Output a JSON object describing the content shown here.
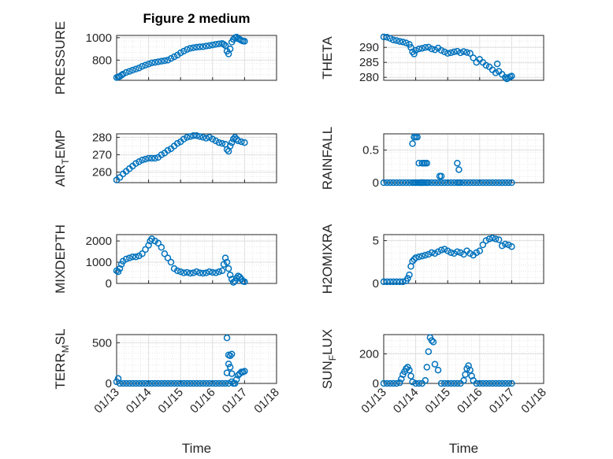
{
  "figure": {
    "title": "Figure 2 medium",
    "xlabel": "Time"
  },
  "colors": {
    "marker": "#0072BD",
    "axis": "#262626",
    "grid": "#dfdfdf"
  },
  "chart_data": [
    {
      "type": "scatter",
      "id": "pressure",
      "ylabel": "PRESSURE",
      "sub": null,
      "ylim": [
        620,
        1020
      ],
      "yticks": [
        800,
        1000
      ],
      "xticks": [
        "01/13",
        "01/14",
        "01/15",
        "01/16",
        "01/17",
        "01/18"
      ],
      "grid": true,
      "series": [
        {
          "x": [
            13.0,
            13.05,
            13.1,
            13.15,
            13.2,
            13.3,
            13.4,
            13.5,
            13.6,
            13.7,
            13.8,
            13.9,
            14.0,
            14.1,
            14.2,
            14.3,
            14.4,
            14.5,
            14.6,
            14.7,
            14.8,
            14.9,
            15.0,
            15.1,
            15.2,
            15.3,
            15.4,
            15.5,
            15.6,
            15.7,
            15.8,
            15.9,
            16.0,
            16.1,
            16.2,
            16.3,
            16.35,
            16.4,
            16.45,
            16.5,
            16.55,
            16.6,
            16.65,
            16.7,
            16.75,
            16.8,
            16.85,
            16.9,
            16.95,
            17.0
          ],
          "y": [
            645,
            650,
            655,
            665,
            675,
            690,
            700,
            710,
            720,
            730,
            745,
            755,
            765,
            775,
            780,
            785,
            790,
            795,
            800,
            815,
            830,
            845,
            865,
            880,
            895,
            905,
            910,
            915,
            918,
            920,
            925,
            930,
            935,
            940,
            945,
            948,
            940,
            930,
            880,
            855,
            900,
            960,
            985,
            1000,
            1005,
            990,
            985,
            975,
            970,
            968
          ]
        }
      ]
    },
    {
      "type": "scatter",
      "id": "theta",
      "ylabel": "THETA",
      "sub": null,
      "ylim": [
        279,
        294
      ],
      "yticks": [
        280,
        285,
        290
      ],
      "xticks": [
        "01/13",
        "01/14",
        "01/15",
        "01/16",
        "01/17",
        "01/18"
      ],
      "grid": true,
      "series": [
        {
          "x": [
            13.0,
            13.1,
            13.2,
            13.3,
            13.4,
            13.5,
            13.6,
            13.7,
            13.8,
            13.85,
            13.9,
            13.95,
            14.0,
            14.1,
            14.2,
            14.3,
            14.4,
            14.5,
            14.6,
            14.7,
            14.8,
            14.9,
            15.0,
            15.1,
            15.2,
            15.3,
            15.4,
            15.5,
            15.6,
            15.7,
            15.8,
            15.9,
            16.0,
            16.1,
            16.2,
            16.3,
            16.4,
            16.5,
            16.55,
            16.6,
            16.7,
            16.8,
            16.85,
            16.9,
            16.95,
            17.0
          ],
          "y": [
            293.5,
            293.4,
            293,
            292.5,
            292.3,
            292,
            291.8,
            291.5,
            291,
            290,
            288.5,
            287.8,
            289,
            289.5,
            289.7,
            290,
            290.1,
            289.5,
            289.2,
            289.8,
            289,
            288.5,
            288,
            288.2,
            288.5,
            288.7,
            288.2,
            288.6,
            288.3,
            288,
            286.5,
            285,
            286,
            285,
            284,
            283.5,
            282.5,
            281.5,
            284.5,
            282,
            281,
            280,
            279.5,
            279.8,
            280.2,
            280.4
          ]
        }
      ]
    },
    {
      "type": "scatter",
      "id": "air_temp",
      "ylabel": "AIR",
      "sub": "T",
      "ylabel_tail": "EMP",
      "ylim": [
        254,
        282
      ],
      "yticks": [
        260,
        270,
        280
      ],
      "xticks": [
        "01/13",
        "01/14",
        "01/15",
        "01/16",
        "01/17",
        "01/18"
      ],
      "grid": true,
      "series": [
        {
          "x": [
            13.0,
            13.1,
            13.2,
            13.3,
            13.4,
            13.5,
            13.6,
            13.7,
            13.8,
            13.9,
            14.0,
            14.1,
            14.2,
            14.3,
            14.4,
            14.5,
            14.6,
            14.7,
            14.8,
            14.9,
            15.0,
            15.1,
            15.2,
            15.3,
            15.4,
            15.5,
            15.6,
            15.7,
            15.8,
            15.9,
            16.0,
            16.1,
            16.2,
            16.3,
            16.4,
            16.45,
            16.5,
            16.55,
            16.6,
            16.65,
            16.7,
            16.75,
            16.8,
            16.9,
            17.0
          ],
          "y": [
            255.5,
            257,
            259,
            260.5,
            262,
            263.5,
            265,
            266,
            267,
            267.5,
            268,
            268,
            268,
            268.5,
            270,
            271,
            272.5,
            273.5,
            275,
            276.5,
            277.5,
            279,
            280,
            280.5,
            281,
            281,
            280.5,
            280,
            279.5,
            280,
            279,
            278,
            277,
            276.5,
            276,
            273,
            272,
            275,
            277,
            279,
            280,
            279,
            278,
            277.5,
            277
          ]
        }
      ]
    },
    {
      "type": "scatter",
      "id": "rainfall",
      "ylabel": "RAINFALL",
      "sub": null,
      "ylim": [
        0,
        0.75
      ],
      "yticks": [
        0,
        0.5
      ],
      "ytick_labels": [
        "0",
        "0.5"
      ],
      "xticks": [
        "01/13",
        "01/14",
        "01/15",
        "01/16",
        "01/17",
        "01/18"
      ],
      "grid": true,
      "series": [
        {
          "x": [
            13.0,
            13.1,
            13.2,
            13.3,
            13.4,
            13.5,
            13.6,
            13.7,
            13.8,
            13.9,
            13.95,
            14.0,
            14.05,
            14.1,
            14.15,
            14.2,
            14.25,
            14.3,
            14.35,
            14.4,
            14.5,
            14.6,
            14.7,
            14.8,
            14.9,
            15.0,
            15.1,
            15.2,
            15.3,
            15.35,
            15.4,
            15.5,
            15.6,
            15.7,
            15.8,
            15.9,
            16.0,
            16.1,
            16.2,
            16.3,
            16.4,
            16.5,
            16.6,
            16.7,
            16.8,
            16.9,
            17.0,
            13.9,
            13.95,
            14.0,
            14.05,
            14.1,
            14.15,
            14.2,
            14.25,
            14.3,
            14.35,
            14.75,
            14.8,
            15.3,
            15.35,
            14.2,
            14.25
          ],
          "y": [
            0,
            0,
            0,
            0,
            0,
            0,
            0,
            0,
            0,
            0,
            0,
            0,
            0,
            0,
            0,
            0,
            0,
            0,
            0,
            0,
            0,
            0,
            0,
            0,
            0,
            0,
            0,
            0,
            0,
            0,
            0,
            0,
            0,
            0,
            0,
            0,
            0,
            0,
            0,
            0,
            0,
            0,
            0,
            0,
            0,
            0,
            0,
            0.6,
            0.7,
            0.7,
            0.7,
            0.3,
            0,
            0.3,
            0.3,
            0.3,
            0.3,
            0.1,
            0.1,
            0.3,
            0.2,
            0,
            0.3
          ]
        }
      ]
    },
    {
      "type": "scatter",
      "id": "mixdepth",
      "ylabel": "MIXDEPTH",
      "sub": null,
      "ylim": [
        0,
        2300
      ],
      "yticks": [
        0,
        1000,
        2000
      ],
      "xticks": [
        "01/13",
        "01/14",
        "01/15",
        "01/16",
        "01/17",
        "01/18"
      ],
      "grid": true,
      "series": [
        {
          "x": [
            13.0,
            13.05,
            13.1,
            13.15,
            13.2,
            13.3,
            13.4,
            13.5,
            13.6,
            13.7,
            13.8,
            13.9,
            14.0,
            14.05,
            14.1,
            14.2,
            14.3,
            14.4,
            14.5,
            14.6,
            14.7,
            14.8,
            14.9,
            15.0,
            15.1,
            15.2,
            15.3,
            15.4,
            15.5,
            15.6,
            15.7,
            15.8,
            15.9,
            16.0,
            16.1,
            16.2,
            16.3,
            16.35,
            16.4,
            16.45,
            16.5,
            16.55,
            16.6,
            16.65,
            16.7,
            16.75,
            16.8,
            16.85,
            16.9,
            16.95,
            17.0
          ],
          "y": [
            600,
            550,
            700,
            900,
            1050,
            1150,
            1200,
            1250,
            1250,
            1300,
            1400,
            1600,
            1800,
            2000,
            2100,
            2000,
            1900,
            1700,
            1400,
            1200,
            1000,
            700,
            600,
            550,
            500,
            520,
            480,
            500,
            550,
            500,
            480,
            500,
            550,
            520,
            500,
            550,
            600,
            900,
            1200,
            1000,
            700,
            400,
            200,
            50,
            100,
            250,
            350,
            300,
            200,
            100,
            80
          ]
        }
      ]
    },
    {
      "type": "scatter",
      "id": "h2omixra",
      "ylabel": "H2OMIXRA",
      "sub": null,
      "ylim": [
        0,
        5.7
      ],
      "yticks": [
        0,
        5
      ],
      "xticks": [
        "01/13",
        "01/14",
        "01/15",
        "01/16",
        "01/17",
        "01/18"
      ],
      "grid": true,
      "series": [
        {
          "x": [
            13.0,
            13.1,
            13.2,
            13.3,
            13.4,
            13.5,
            13.6,
            13.7,
            13.75,
            13.8,
            13.85,
            13.9,
            13.95,
            14.0,
            14.1,
            14.2,
            14.3,
            14.4,
            14.5,
            14.6,
            14.7,
            14.8,
            14.9,
            15.0,
            15.1,
            15.2,
            15.3,
            15.4,
            15.5,
            15.6,
            15.7,
            15.8,
            15.9,
            16.0,
            16.1,
            16.2,
            16.3,
            16.4,
            16.5,
            16.6,
            16.7,
            16.8,
            16.9,
            17.0
          ],
          "y": [
            0.2,
            0.2,
            0.2,
            0.2,
            0.2,
            0.2,
            0.2,
            0.3,
            0.6,
            1,
            2,
            2.6,
            2.8,
            3,
            3.1,
            3.2,
            3.3,
            3.4,
            3.6,
            3.5,
            3.7,
            3.9,
            4,
            3.8,
            3.6,
            3.5,
            3.7,
            3.6,
            3.4,
            3.8,
            3.5,
            3.3,
            3.6,
            3.8,
            4.5,
            5,
            5.2,
            5.3,
            5.2,
            5.1,
            4.4,
            4.6,
            4.5,
            4.3
          ]
        }
      ]
    },
    {
      "type": "scatter",
      "id": "terr_msl",
      "ylabel": "TERR",
      "sub": "M",
      "ylabel_tail": "SL",
      "ylim": [
        0,
        600
      ],
      "yticks": [
        0,
        500
      ],
      "xticks": [
        "01/13",
        "01/14",
        "01/15",
        "01/16",
        "01/17",
        "01/18"
      ],
      "grid": true,
      "series": [
        {
          "x": [
            13.0,
            13.05,
            13.1,
            13.2,
            13.3,
            13.4,
            13.5,
            13.6,
            13.7,
            13.8,
            13.9,
            14.0,
            14.1,
            14.2,
            14.3,
            14.4,
            14.5,
            14.6,
            14.7,
            14.8,
            14.9,
            15.0,
            15.1,
            15.2,
            15.3,
            15.4,
            15.5,
            15.6,
            15.7,
            15.8,
            15.9,
            16.0,
            16.1,
            16.2,
            16.3,
            16.4,
            16.45,
            16.5,
            16.55,
            16.6,
            16.65,
            16.7,
            16.75,
            16.8,
            16.85,
            16.9,
            16.95,
            17.0,
            16.45,
            16.5,
            16.55,
            16.6,
            16.6,
            16.5
          ],
          "y": [
            20,
            60,
            0,
            0,
            0,
            0,
            0,
            0,
            0,
            0,
            0,
            0,
            0,
            0,
            0,
            0,
            0,
            0,
            0,
            0,
            0,
            0,
            0,
            0,
            0,
            0,
            0,
            0,
            0,
            0,
            0,
            0,
            0,
            0,
            0,
            0,
            560,
            350,
            200,
            120,
            0,
            0,
            50,
            100,
            120,
            140,
            140,
            150,
            130,
            240,
            340,
            360,
            20,
            0
          ]
        }
      ]
    },
    {
      "type": "scatter",
      "id": "sun_flux",
      "ylabel": "SUN",
      "sub": "F",
      "ylabel_tail": "LUX",
      "ylim": [
        0,
        330
      ],
      "yticks": [
        0,
        200
      ],
      "xticks": [
        "01/13",
        "01/14",
        "01/15",
        "01/16",
        "01/17",
        "01/18"
      ],
      "grid": true,
      "series": [
        {
          "x": [
            13.0,
            13.1,
            13.2,
            13.3,
            13.4,
            13.5,
            13.55,
            13.6,
            13.65,
            13.7,
            13.75,
            13.8,
            13.85,
            13.9,
            14.0,
            14.1,
            14.2,
            14.3,
            14.35,
            14.4,
            14.45,
            14.5,
            14.55,
            14.6,
            14.7,
            14.8,
            14.9,
            15.0,
            15.1,
            15.2,
            15.3,
            15.4,
            15.5,
            15.55,
            15.6,
            15.65,
            15.7,
            15.75,
            15.8,
            15.9,
            16.0,
            16.1,
            16.2,
            16.3,
            16.4,
            16.5,
            16.6,
            16.7,
            16.8,
            16.9,
            17.0
          ],
          "y": [
            0,
            0,
            0,
            0,
            0,
            5,
            30,
            60,
            80,
            100,
            110,
            90,
            50,
            10,
            0,
            0,
            0,
            20,
            110,
            215,
            310,
            290,
            280,
            130,
            90,
            0,
            0,
            0,
            0,
            0,
            0,
            0,
            20,
            60,
            100,
            120,
            90,
            50,
            20,
            0,
            0,
            0,
            0,
            0,
            0,
            0,
            0,
            0,
            0,
            0,
            0
          ]
        }
      ]
    }
  ]
}
